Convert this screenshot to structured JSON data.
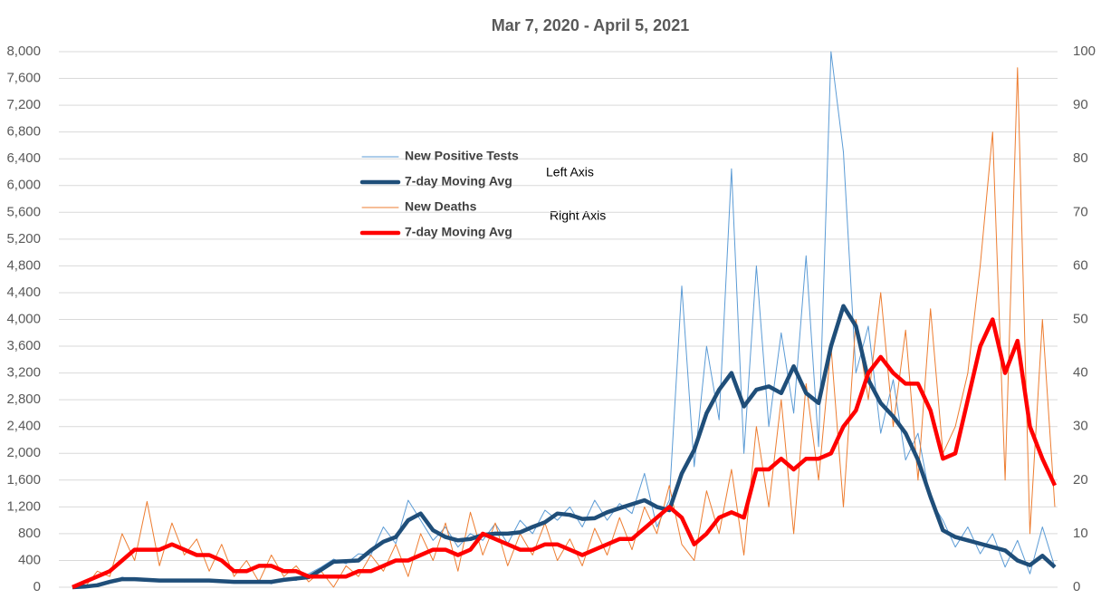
{
  "chart_data": {
    "type": "line",
    "title": "Mar 7, 2020 - April 5, 2021",
    "ylim": [
      0,
      8000
    ],
    "yticks": [
      0,
      400,
      800,
      {
        "value": 1200,
        "label": "1,200"
      },
      {
        "value": 1600,
        "label": "1,600"
      },
      {
        "value": 2000,
        "label": "2,000"
      },
      {
        "value": 2400,
        "label": "2,400"
      },
      {
        "value": 2800,
        "label": "2,800"
      },
      {
        "value": 3200,
        "label": "3,200"
      },
      {
        "value": 3600,
        "label": "3,600"
      },
      {
        "value": 4000,
        "label": "4,000"
      },
      {
        "value": 4400,
        "label": "4,400"
      },
      {
        "value": 4800,
        "label": "4,800"
      },
      {
        "value": 5200,
        "label": "5,200"
      },
      {
        "value": 5600,
        "label": "5,600"
      },
      {
        "value": 6000,
        "label": "6,000"
      },
      {
        "value": 6400,
        "label": "6,400"
      },
      {
        "value": 6800,
        "label": "6,800"
      },
      {
        "value": 7200,
        "label": "7,200"
      },
      {
        "value": 7600,
        "label": "7,600"
      },
      {
        "value": 8000,
        "label": "8,000"
      }
    ],
    "y2lim": [
      0,
      100
    ],
    "y2ticks": [
      0,
      10,
      20,
      30,
      40,
      50,
      60,
      70,
      80,
      90,
      100
    ],
    "grid": true,
    "annotations": [
      "Left Axis",
      "Right Axis"
    ],
    "series": [
      {
        "name": "New Positive Tests",
        "color": "#5b9bd5",
        "width": 1,
        "axis": "y",
        "values": [
          0,
          10,
          20,
          60,
          150,
          100,
          130,
          90,
          110,
          80,
          120,
          90,
          70,
          100,
          60,
          110,
          50,
          140,
          100,
          200,
          300,
          420,
          350,
          500,
          480,
          900,
          650,
          1300,
          1000,
          700,
          900,
          600,
          800,
          700,
          950,
          650,
          1000,
          800,
          1150,
          1000,
          1200,
          900,
          1300,
          1000,
          1250,
          1100,
          1700,
          900,
          1300,
          4500,
          1800,
          3600,
          2500,
          6250,
          2000,
          4800,
          2400,
          3800,
          2600,
          4950,
          2100,
          8000,
          6500,
          3200,
          3900,
          2300,
          3100,
          1900,
          2300,
          1300,
          1000,
          600,
          900,
          500,
          800,
          300,
          700,
          200,
          900,
          300
        ]
      },
      {
        "name": "7-day Moving Avg",
        "color": "#1f4e79",
        "width": 4.5,
        "axis": "y",
        "values": [
          0,
          10,
          30,
          80,
          120,
          120,
          110,
          100,
          100,
          100,
          100,
          100,
          90,
          80,
          80,
          80,
          80,
          110,
          130,
          150,
          260,
          380,
          390,
          400,
          550,
          680,
          750,
          1000,
          1100,
          850,
          750,
          700,
          720,
          780,
          800,
          800,
          820,
          900,
          970,
          1100,
          1080,
          1020,
          1030,
          1120,
          1180,
          1240,
          1300,
          1200,
          1150,
          1700,
          2050,
          2600,
          2950,
          3200,
          2700,
          2950,
          3000,
          2900,
          3300,
          2900,
          2750,
          3600,
          4200,
          3900,
          3100,
          2750,
          2550,
          2300,
          1900,
          1350,
          850,
          750,
          700,
          650,
          600,
          550,
          400,
          330,
          470,
          300
        ]
      },
      {
        "name": "New Deaths",
        "color": "#ed7d31",
        "width": 1,
        "axis": "y2",
        "values": [
          0,
          0,
          3,
          2,
          10,
          5,
          16,
          4,
          12,
          6,
          9,
          3,
          8,
          2,
          5,
          1,
          6,
          2,
          4,
          1,
          3,
          0,
          4,
          2,
          6,
          3,
          8,
          2,
          10,
          5,
          12,
          3,
          14,
          6,
          12,
          4,
          10,
          6,
          12,
          5,
          9,
          4,
          11,
          6,
          13,
          7,
          15,
          10,
          19,
          8,
          5,
          18,
          10,
          22,
          6,
          30,
          15,
          35,
          10,
          38,
          20,
          45,
          15,
          50,
          35,
          55,
          30,
          48,
          20,
          52,
          25,
          30,
          40,
          60,
          85,
          20,
          97,
          10,
          50,
          15
        ]
      },
      {
        "name": "7-day Moving Avg",
        "color": "#ff0000",
        "width": 4.5,
        "axis": "y2",
        "values": [
          0,
          1,
          2,
          3,
          5,
          7,
          7,
          7,
          8,
          7,
          6,
          6,
          5,
          3,
          3,
          4,
          4,
          3,
          3,
          2,
          2,
          2,
          2,
          3,
          3,
          4,
          5,
          5,
          6,
          7,
          7,
          6,
          7,
          10,
          9,
          8,
          7,
          7,
          8,
          8,
          7,
          6,
          7,
          8,
          9,
          9,
          11,
          13,
          15,
          13,
          8,
          10,
          13,
          14,
          13,
          22,
          22,
          24,
          22,
          24,
          24,
          25,
          30,
          33,
          40,
          43,
          40,
          38,
          38,
          33,
          24,
          25,
          35,
          45,
          50,
          40,
          46,
          30,
          24,
          19
        ]
      }
    ]
  }
}
